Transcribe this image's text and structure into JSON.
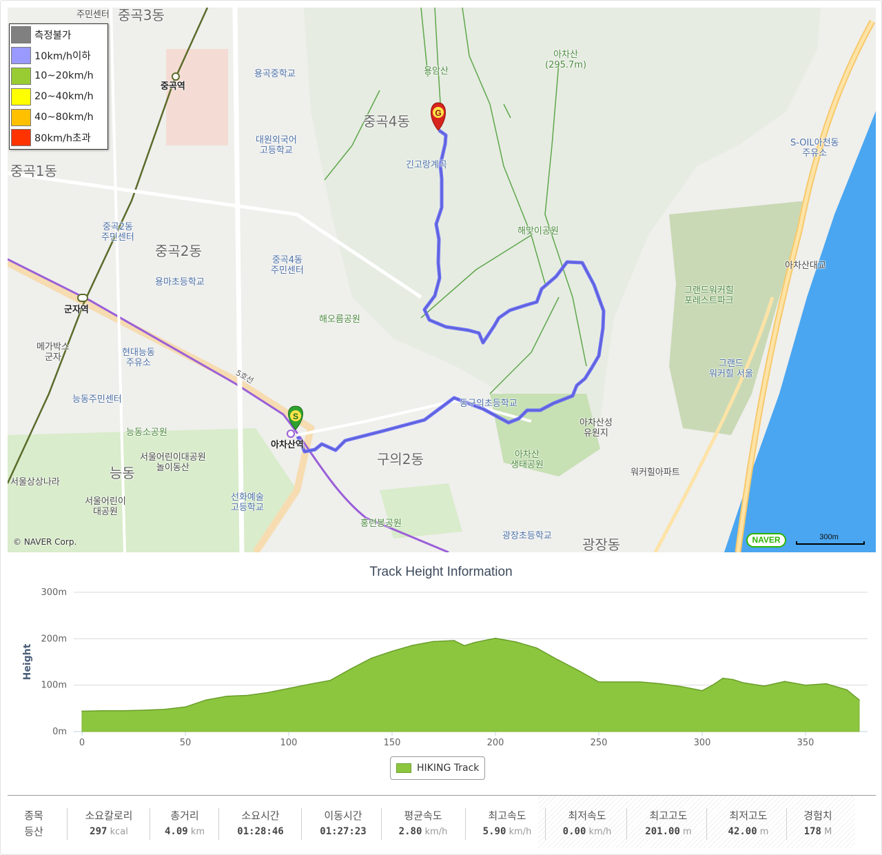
{
  "map": {
    "copyright": "© NAVER Corp.",
    "logo": "NAVER",
    "scale_label": "300m",
    "legend": [
      {
        "label": "측정불가",
        "color": "#808080"
      },
      {
        "label": "10km/h이하",
        "color": "#9999ff"
      },
      {
        "label": "10~20km/h",
        "color": "#99cc33"
      },
      {
        "label": "20~40km/h",
        "color": "#ffff00"
      },
      {
        "label": "40~80km/h",
        "color": "#ffc000"
      },
      {
        "label": "80km/h초과",
        "color": "#ff3300"
      }
    ],
    "markers": {
      "start": "S",
      "goal": "G"
    },
    "labels": {
      "junggok3": "중곡3동",
      "junggok3_center": "주민센터",
      "junggok1": "중곡1동",
      "junggok_station": "중곡역",
      "yonggok_middle": "용곡중학교",
      "daewon": "대원외국어\n고등학교",
      "junggok2_center": "중곡2동\n주민센터",
      "junggok2": "중곡2동",
      "yongma": "용마초등학교",
      "junggok4": "중곡4동",
      "junggok4_center": "중곡4동\n주민센터",
      "gunja_station": "군자역",
      "megabox": "메가박스\n군자",
      "hyundai": "현대능동\n주유소",
      "neungdong_center": "능동주민센터",
      "neungdong_park": "능동소공원",
      "childrens_park": "서울어린이대공원\n놀이동산",
      "neungdong": "능동",
      "seoul_sangsang": "서울상상나라",
      "seoul_children": "서울어린이\n대공원",
      "line5": "5호선",
      "yongamsan": "용암산",
      "achasan": "아차산\n(295.7m)",
      "gingo": "긴고랑계곡",
      "haemaji": "해맞이공원",
      "heoreum": "해오름공원",
      "guui_elementary": "동구의초등학교",
      "achasan_station": "아차산역",
      "guui2": "구의2동",
      "achasan_fortress": "아차산성\n유원지",
      "achasan_eco": "아차산\n생태공원",
      "seonhwa": "선화예술\n고등학교",
      "hongryeonbong": "홍련봉공원",
      "gwangjang_elem": "광장초등학교",
      "gwangjang": "광장동",
      "soil": "S-OIL아천동\n주유소",
      "achasan_bridge": "아차산대교",
      "grand_forest": "그랜드워커힐\n포레스트파크",
      "grand_hotel": "그랜드\n워커힐 서울",
      "walkerhill_apt": "워커힐아파트"
    }
  },
  "chart_data": {
    "type": "area",
    "title": "Track Height Information",
    "ylabel": "Height",
    "xlabel": "",
    "series": [
      {
        "name": "HIKING Track",
        "color": "#8cc63f"
      }
    ],
    "x": [
      0,
      10,
      20,
      30,
      40,
      50,
      60,
      70,
      80,
      90,
      100,
      110,
      120,
      130,
      140,
      150,
      160,
      170,
      180,
      185,
      190,
      200,
      210,
      220,
      230,
      240,
      250,
      260,
      270,
      280,
      290,
      300,
      305,
      310,
      315,
      320,
      330,
      340,
      350,
      360,
      370,
      376
    ],
    "y": [
      44,
      45,
      45,
      46,
      48,
      53,
      68,
      76,
      78,
      84,
      93,
      102,
      110,
      135,
      158,
      173,
      186,
      194,
      196,
      185,
      192,
      201,
      193,
      180,
      155,
      132,
      107,
      107,
      107,
      103,
      97,
      88,
      100,
      115,
      112,
      105,
      98,
      108,
      100,
      103,
      90,
      68
    ],
    "xticks": [
      0,
      50,
      100,
      150,
      200,
      250,
      300,
      350
    ],
    "yticks": [
      {
        "v": 0,
        "label": "0m"
      },
      {
        "v": 100,
        "label": "100m"
      },
      {
        "v": 200,
        "label": "200m"
      },
      {
        "v": 300,
        "label": "300m"
      }
    ],
    "xlim": [
      0,
      376
    ],
    "ylim": [
      0,
      300
    ],
    "grid": true,
    "legend": "bottom-center"
  },
  "stats": [
    {
      "label": "종목",
      "value": "등산",
      "unit": ""
    },
    {
      "label": "소요칼로리",
      "value": "297",
      "unit": "kcal"
    },
    {
      "label": "총거리",
      "value": "4.09",
      "unit": "km"
    },
    {
      "label": "소요시간",
      "value": "01:28:46",
      "unit": ""
    },
    {
      "label": "이동시간",
      "value": "01:27:23",
      "unit": ""
    },
    {
      "label": "평균속도",
      "value": "2.80",
      "unit": "km/h"
    },
    {
      "label": "최고속도",
      "value": "5.90",
      "unit": "km/h"
    },
    {
      "label": "최저속도",
      "value": "0.00",
      "unit": "km/h"
    },
    {
      "label": "최고고도",
      "value": "201.00",
      "unit": "m"
    },
    {
      "label": "최저고도",
      "value": "42.00",
      "unit": "m"
    },
    {
      "label": "경험치",
      "value": "178",
      "unit": "M"
    }
  ]
}
